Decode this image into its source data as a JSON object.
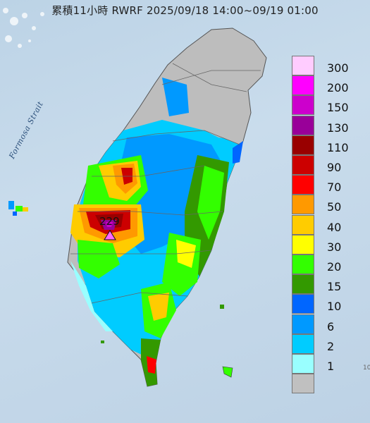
{
  "title": "累積11小時 RWRF 2025/09/18 14:00~09/19 01:00",
  "sea_label": "Formosa Strait",
  "max_value_label": "229",
  "edge_mark": "10",
  "legend": {
    "items": [
      {
        "label": "300",
        "color": "#ffccff"
      },
      {
        "label": "200",
        "color": "#ff00ff"
      },
      {
        "label": "150",
        "color": "#cc00cc"
      },
      {
        "label": "130",
        "color": "#990099"
      },
      {
        "label": "110",
        "color": "#990000"
      },
      {
        "label": "90",
        "color": "#cc0000"
      },
      {
        "label": "70",
        "color": "#ff0000"
      },
      {
        "label": "50",
        "color": "#ff9900"
      },
      {
        "label": "40",
        "color": "#ffcc00"
      },
      {
        "label": "30",
        "color": "#ffff00"
      },
      {
        "label": "20",
        "color": "#33ff00"
      },
      {
        "label": "15",
        "color": "#339900"
      },
      {
        "label": "10",
        "color": "#0066ff"
      },
      {
        "label": "6",
        "color": "#0099ff"
      },
      {
        "label": "2",
        "color": "#00ccff"
      },
      {
        "label": "1",
        "color": "#99ffff"
      },
      {
        "label": "",
        "color": "#c0c0c0"
      }
    ]
  }
}
